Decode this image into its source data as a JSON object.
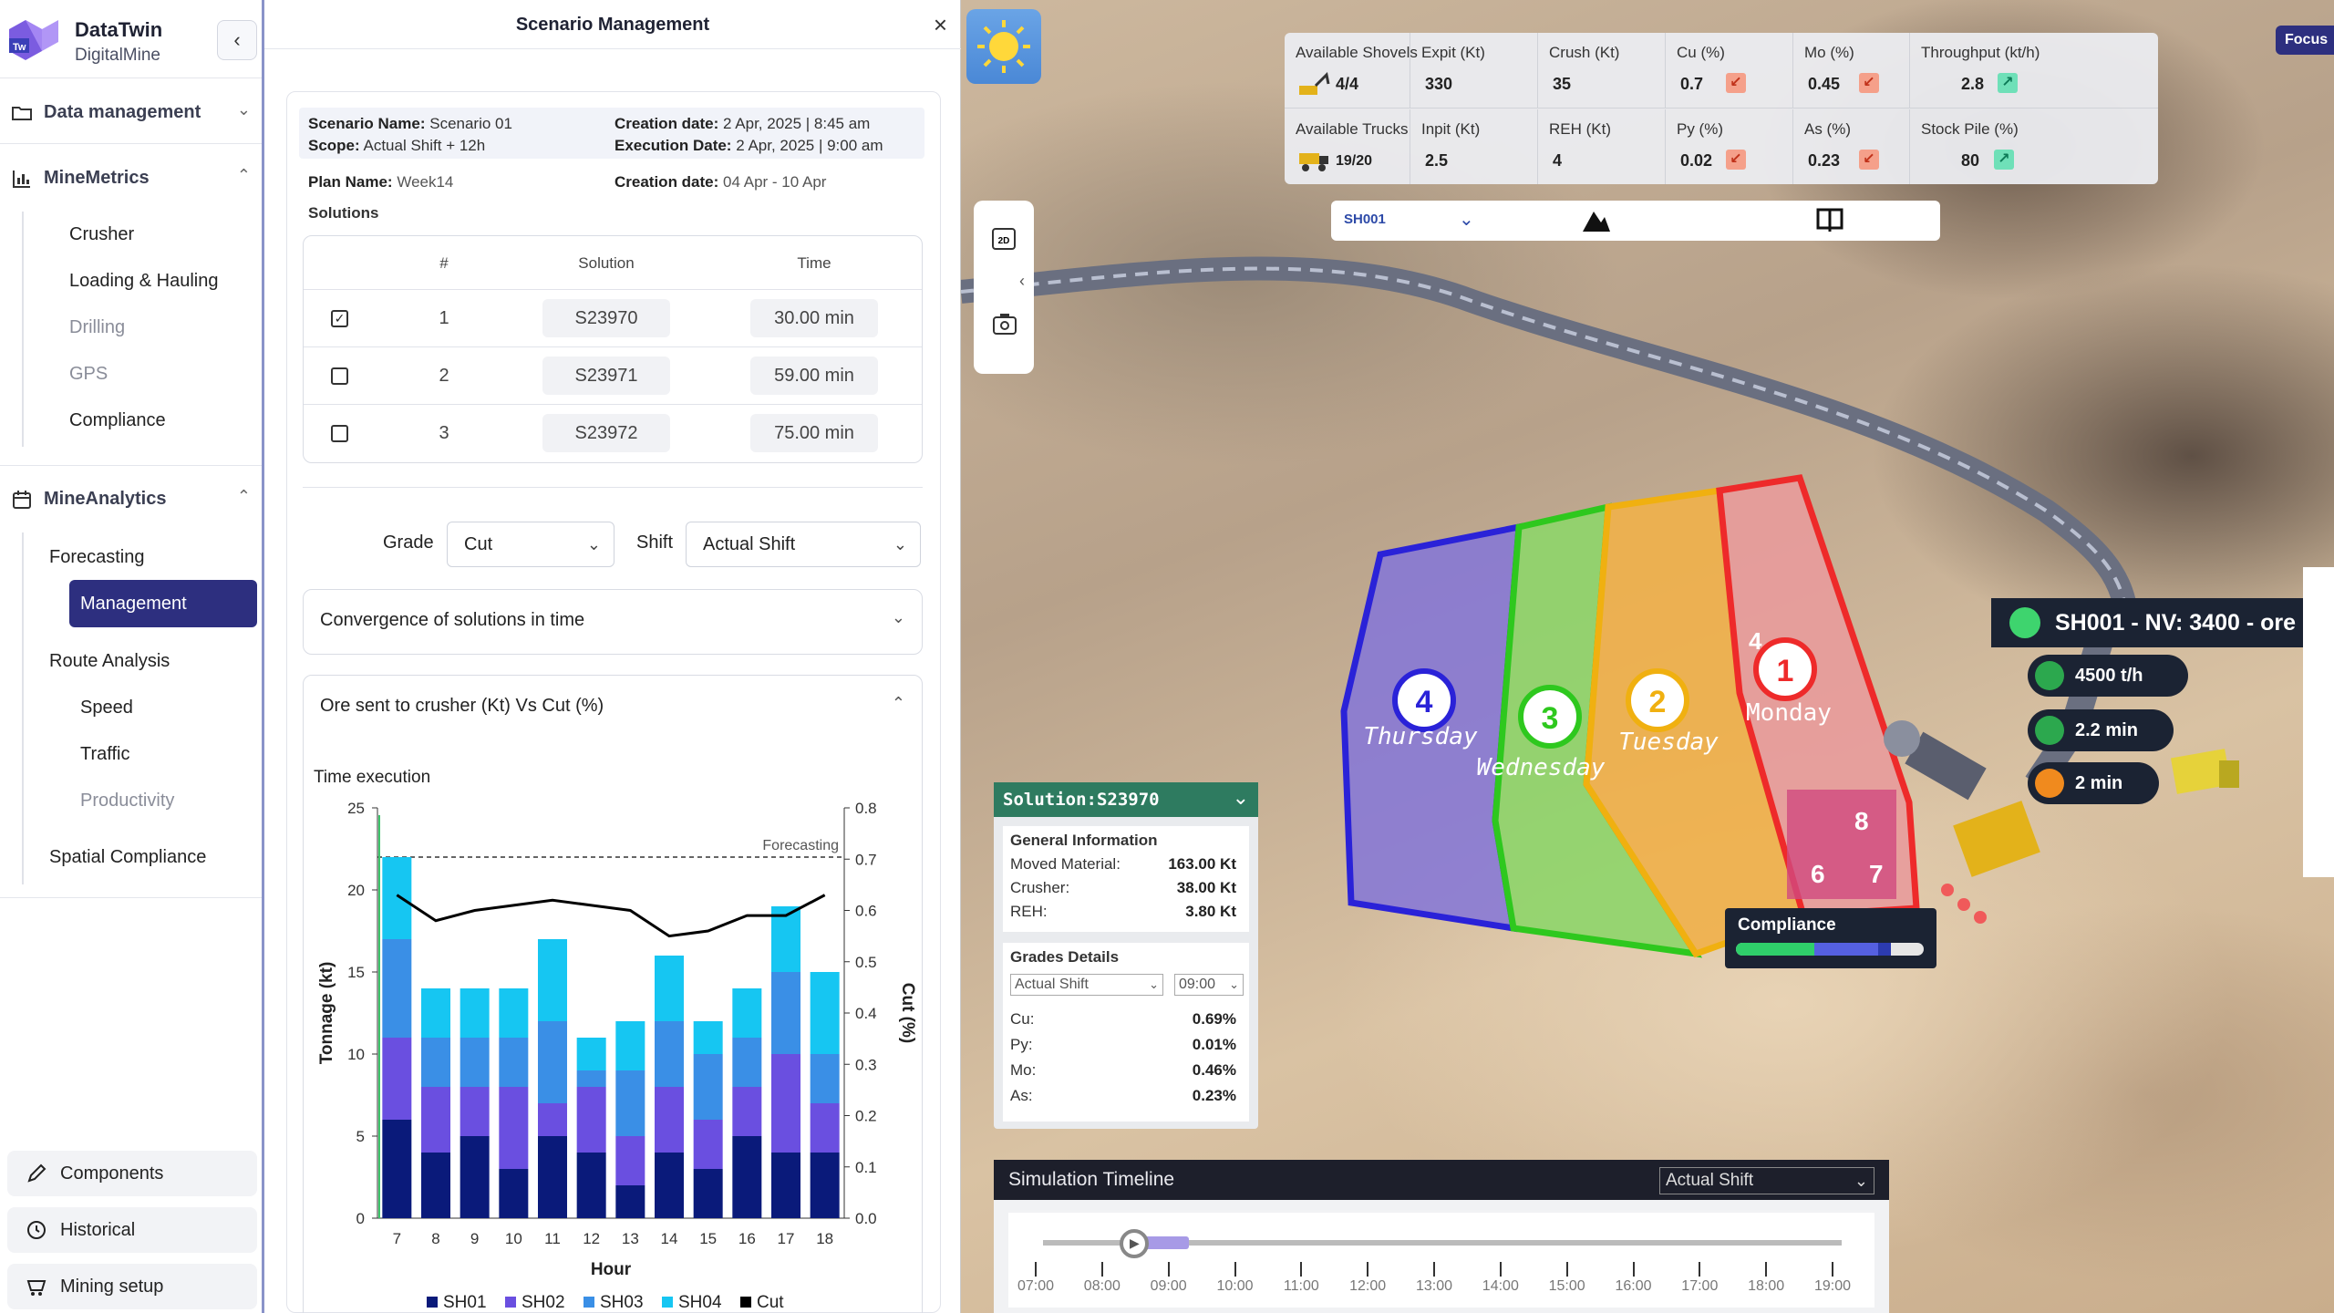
{
  "brand": {
    "name": "DataTwin",
    "subtitle": "DigitalMine",
    "logo_text": "Tw"
  },
  "sidebar": {
    "sections": [
      {
        "label": "Data management",
        "icon": "folder-icon",
        "expanded": false
      },
      {
        "label": "MineMetrics",
        "icon": "bar-chart-icon",
        "expanded": true,
        "items": [
          "Crusher",
          "Loading & Hauling",
          "Drilling",
          "GPS",
          "Compliance"
        ]
      },
      {
        "label": "MineAnalytics",
        "icon": "calendar-chart-icon",
        "expanded": true
      }
    ],
    "analytics": {
      "forecasting": "Forecasting",
      "management": "Management",
      "route_analysis": "Route Analysis",
      "route_items": [
        "Speed",
        "Traffic",
        "Productivity"
      ],
      "spatial": "Spatial Compliance"
    },
    "bottom": [
      "Components",
      "Historical",
      "Mining setup"
    ]
  },
  "panel": {
    "title": "Scenario Management",
    "info": {
      "scenario_label": "Scenario Name:",
      "scenario_value": "Scenario 01",
      "scope_label": "Scope:",
      "scope_value": "Actual Shift + 12h",
      "creation_label": "Creation date:",
      "creation_value": "2 Apr, 2025 | 8:45 am",
      "exec_label": "Execution Date:",
      "exec_value": "2 Apr, 2025 | 9:00 am",
      "plan_label": "Plan Name:",
      "plan_value": "Week14",
      "plan_creation_label": "Creation date:",
      "plan_creation_value": "04 Apr - 10 Apr"
    },
    "solutions_label": "Solutions",
    "table_headers": [
      "#",
      "Solution",
      "Time"
    ],
    "solutions": [
      {
        "num": "1",
        "solution": "S23970",
        "time": "30.00 min",
        "checked": true
      },
      {
        "num": "2",
        "solution": "S23971",
        "time": "59.00 min",
        "checked": false
      },
      {
        "num": "3",
        "solution": "S23972",
        "time": "75.00 min",
        "checked": false
      }
    ],
    "grade_label": "Grade",
    "grade_value": "Cut",
    "shift_label": "Shift",
    "shift_value": "Actual Shift",
    "accordion1": "Convergence of solutions in time",
    "accordion2": "Ore sent to crusher (Kt) Vs Cut (%)"
  },
  "chart_data": {
    "type": "bar",
    "title": "Time execution",
    "xlabel": "Hour",
    "ylabel": "Tonnage (kt)",
    "y2label": "Cut (%)",
    "categories": [
      "7",
      "8",
      "9",
      "10",
      "11",
      "12",
      "13",
      "14",
      "15",
      "16",
      "17",
      "18"
    ],
    "ylim": [
      0,
      25
    ],
    "y2lim": [
      0.0,
      0.8
    ],
    "yticks": [
      "0",
      "5",
      "10",
      "15",
      "20",
      "25"
    ],
    "y2ticks": [
      "0.0",
      "0.1",
      "0.2",
      "0.3",
      "0.4",
      "0.5",
      "0.6",
      "0.7",
      "0.8"
    ],
    "forecast_label": "Forecasting",
    "forecast_y": 22,
    "stacked": true,
    "series": [
      {
        "name": "SH01",
        "color": "#0a1a7a",
        "values": [
          6,
          4,
          5,
          3,
          5,
          4,
          2,
          4,
          3,
          5,
          4,
          4
        ]
      },
      {
        "name": "SH02",
        "color": "#6a4fe0",
        "values": [
          5,
          4,
          3,
          5,
          2,
          4,
          3,
          4,
          3,
          3,
          6,
          3
        ]
      },
      {
        "name": "SH03",
        "color": "#3a8fe6",
        "values": [
          6,
          3,
          3,
          3,
          5,
          1,
          4,
          4,
          4,
          3,
          5,
          3
        ]
      },
      {
        "name": "SH04",
        "color": "#16c6f2",
        "values": [
          5,
          3,
          3,
          3,
          5,
          2,
          3,
          4,
          2,
          3,
          4,
          5
        ]
      }
    ],
    "line": {
      "name": "Cut",
      "color": "#000000",
      "values": [
        0.63,
        0.58,
        0.6,
        0.61,
        0.62,
        0.61,
        0.6,
        0.55,
        0.56,
        0.59,
        0.59,
        0.63
      ]
    }
  },
  "view": {
    "kpis": [
      {
        "label": "Available Shovels",
        "value": "4/4",
        "icon": "shovel-icon"
      },
      {
        "label": "Expit (Kt)",
        "value": "330"
      },
      {
        "label": "Crush (Kt)",
        "value": "35"
      },
      {
        "label": "Cu (%)",
        "value": "0.7",
        "trend": "down"
      },
      {
        "label": "Mo (%)",
        "value": "0.45",
        "trend": "down"
      },
      {
        "label": "Throughput (kt/h)",
        "value": "2.8",
        "trend": "up"
      },
      {
        "label": "Available Trucks",
        "value": "19/20",
        "icon": "truck-icon"
      },
      {
        "label": "Inpit (Kt)",
        "value": "2.5"
      },
      {
        "label": "REH (Kt)",
        "value": "4"
      },
      {
        "label": "Py (%)",
        "value": "0.02",
        "trend": "down"
      },
      {
        "label": "As (%)",
        "value": "0.23",
        "trend": "down"
      },
      {
        "label": "Stock Pile (%)",
        "value": "80",
        "trend": "up"
      }
    ],
    "shovel_select": "SH001",
    "focus": "Focus",
    "zones": [
      {
        "num": "4",
        "day": "Thursday"
      },
      {
        "num": "3",
        "day": "Wednesday"
      },
      {
        "num": "2",
        "day": "Tuesday"
      },
      {
        "num": "1",
        "day": "Monday"
      }
    ],
    "blocks": [
      "4",
      "8",
      "6",
      "7"
    ],
    "nv_label": "SH001 - NV: 3400 - ore",
    "route": [
      {
        "text": "4500 t/h",
        "icon": "throughput-icon"
      },
      {
        "text": "2.2 min",
        "icon": "speed-icon"
      },
      {
        "text": "2 min",
        "icon": "clock-icon"
      }
    ],
    "compliance_label": "Compliance",
    "solution_card": {
      "title": "Solution:S23970",
      "general_title": "General Information",
      "general": [
        {
          "label": "Moved Material:",
          "value": "163.00 Kt"
        },
        {
          "label": "Crusher:",
          "value": "38.00 Kt"
        },
        {
          "label": "REH:",
          "value": "3.80 Kt"
        }
      ],
      "grades_title": "Grades Details",
      "shift_select": "Actual Shift",
      "time_select": "09:00",
      "grades": [
        {
          "label": "Cu:",
          "value": "0.69%"
        },
        {
          "label": "Py:",
          "value": "0.01%"
        },
        {
          "label": "Mo:",
          "value": "0.46%"
        },
        {
          "label": "As:",
          "value": "0.23%"
        }
      ]
    },
    "timeline": {
      "title": "Simulation Timeline",
      "shift": "Actual Shift",
      "hours": [
        "07:00",
        "08:00",
        "09:00",
        "10:00",
        "11:00",
        "12:00",
        "13:00",
        "14:00",
        "15:00",
        "16:00",
        "17:00",
        "18:00",
        "19:00"
      ]
    }
  }
}
